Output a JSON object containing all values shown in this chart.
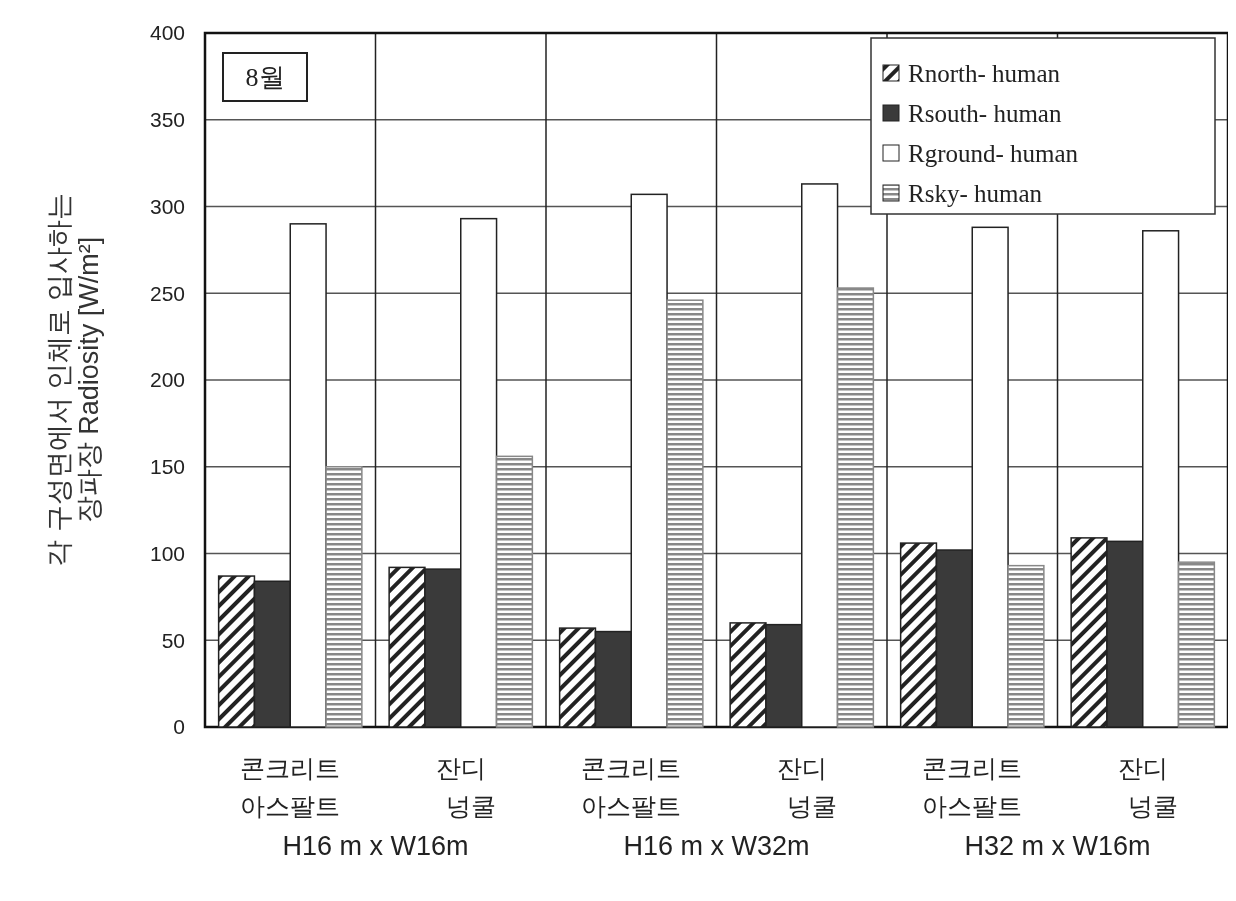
{
  "chart_data": {
    "type": "bar",
    "ylabel": "각 구성면에서 인체로 입사하는\n장파장 Radiosity [W/m²]",
    "categories": [
      "콘크리트\n아스팔트",
      "잔디\n넝쿨",
      "콘크리트\n아스팔트",
      "잔디\n넝쿨",
      "콘크리트\n아스팔트",
      "잔디\n넝쿨"
    ],
    "series": [
      {
        "name": "Rnorth- human",
        "color": "#222222",
        "values": [
          87,
          92,
          57,
          60,
          106,
          109
        ]
      },
      {
        "name": "Rsouth- human",
        "color": "#3a3a3a",
        "values": [
          84,
          91,
          55,
          59,
          102,
          107
        ]
      },
      {
        "name": "Rground- human",
        "color": "#ffffff",
        "values": [
          290,
          293,
          307,
          313,
          288,
          286
        ]
      },
      {
        "name": "Rsky- human",
        "color": "#888888",
        "values": [
          150,
          156,
          246,
          253,
          93,
          95
        ]
      }
    ],
    "annotations": [
      "8월",
      "H16 m x W16m",
      "H16 m x W32m",
      "H32 m x W16m"
    ],
    "ylim": [
      0,
      400
    ],
    "yticks": [
      0,
      50,
      100,
      150,
      200,
      250,
      300,
      350,
      400
    ],
    "grid": true,
    "legend": "top right"
  }
}
